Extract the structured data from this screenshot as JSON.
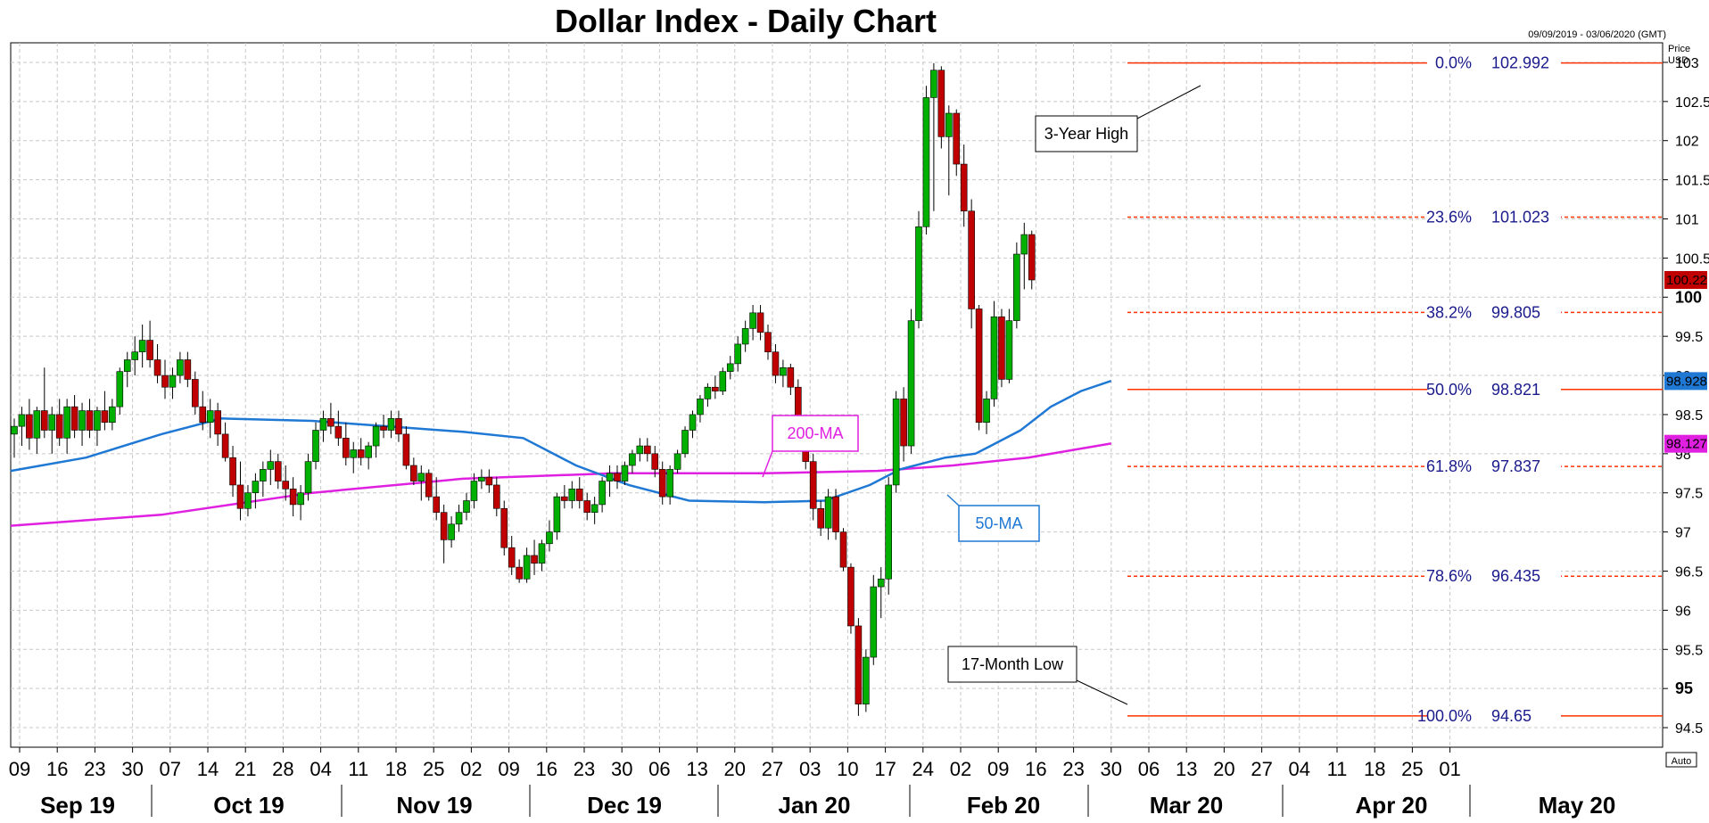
{
  "chart_data": {
    "type": "candlestick",
    "title": "Dollar Index - Daily Chart",
    "date_range": "09/09/2019 - 03/06/2020 (GMT)",
    "y_unit_label": [
      "Price",
      "USD"
    ],
    "ylim": [
      94.25,
      103.25
    ],
    "y_ticks": [
      "94.5",
      "95",
      "95.5",
      "96",
      "96.5",
      "97",
      "97.5",
      "98",
      "98.5",
      "99",
      "99.5",
      "100",
      "100.5",
      "101",
      "101.5",
      "102",
      "102.5",
      "103"
    ],
    "y_bold_ticks": [
      "95",
      "100"
    ],
    "x_day_ticks": [
      "09",
      "16",
      "23",
      "30",
      "07",
      "14",
      "21",
      "28",
      "04",
      "11",
      "18",
      "25",
      "02",
      "09",
      "16",
      "23",
      "30",
      "06",
      "13",
      "20",
      "27",
      "03",
      "10",
      "17",
      "24",
      "02",
      "09",
      "16",
      "23",
      "30",
      "06",
      "13",
      "20",
      "27",
      "04",
      "11",
      "18",
      "25",
      "01"
    ],
    "x_months": [
      "Sep 19",
      "Oct 19",
      "Nov 19",
      "Dec 19",
      "Jan 20",
      "Feb 20",
      "Mar 20",
      "Apr 20",
      "May 20"
    ],
    "auto_label": "Auto",
    "grid": true,
    "candles": [
      [
        98.25,
        98.45,
        97.95,
        98.35
      ],
      [
        98.35,
        98.6,
        98.1,
        98.5
      ],
      [
        98.5,
        98.7,
        98.05,
        98.2
      ],
      [
        98.2,
        98.6,
        98.0,
        98.55
      ],
      [
        98.55,
        99.1,
        98.2,
        98.3
      ],
      [
        98.3,
        98.6,
        98.0,
        98.5
      ],
      [
        98.5,
        98.7,
        98.1,
        98.2
      ],
      [
        98.2,
        98.7,
        98.0,
        98.6
      ],
      [
        98.6,
        98.75,
        98.2,
        98.3
      ],
      [
        98.3,
        98.65,
        98.1,
        98.55
      ],
      [
        98.55,
        98.7,
        98.2,
        98.3
      ],
      [
        98.3,
        98.6,
        98.1,
        98.55
      ],
      [
        98.55,
        98.8,
        98.3,
        98.4
      ],
      [
        98.4,
        98.7,
        98.3,
        98.6
      ],
      [
        98.6,
        99.1,
        98.5,
        99.05
      ],
      [
        99.05,
        99.3,
        98.85,
        99.2
      ],
      [
        99.2,
        99.5,
        99.0,
        99.3
      ],
      [
        99.3,
        99.65,
        99.1,
        99.45
      ],
      [
        99.45,
        99.7,
        99.1,
        99.2
      ],
      [
        99.2,
        99.4,
        98.9,
        99.0
      ],
      [
        99.0,
        99.2,
        98.7,
        98.85
      ],
      [
        98.85,
        99.1,
        98.7,
        99.0
      ],
      [
        99.0,
        99.3,
        98.9,
        99.2
      ],
      [
        99.2,
        99.3,
        98.85,
        98.95
      ],
      [
        98.95,
        99.05,
        98.5,
        98.6
      ],
      [
        98.6,
        98.8,
        98.3,
        98.4
      ],
      [
        98.4,
        98.7,
        98.2,
        98.55
      ],
      [
        98.55,
        98.65,
        98.1,
        98.25
      ],
      [
        98.25,
        98.4,
        97.9,
        97.95
      ],
      [
        97.95,
        98.1,
        97.45,
        97.6
      ],
      [
        97.6,
        97.9,
        97.15,
        97.3
      ],
      [
        97.3,
        97.6,
        97.2,
        97.5
      ],
      [
        97.5,
        97.75,
        97.3,
        97.65
      ],
      [
        97.65,
        97.9,
        97.45,
        97.8
      ],
      [
        97.8,
        98.05,
        97.6,
        97.9
      ],
      [
        97.9,
        98.0,
        97.55,
        97.65
      ],
      [
        97.65,
        97.85,
        97.4,
        97.55
      ],
      [
        97.55,
        97.7,
        97.2,
        97.35
      ],
      [
        97.35,
        97.6,
        97.15,
        97.5
      ],
      [
        97.5,
        98.0,
        97.4,
        97.9
      ],
      [
        97.9,
        98.4,
        97.8,
        98.3
      ],
      [
        98.3,
        98.55,
        98.15,
        98.45
      ],
      [
        98.45,
        98.65,
        98.25,
        98.35
      ],
      [
        98.35,
        98.55,
        98.1,
        98.2
      ],
      [
        98.2,
        98.4,
        97.85,
        97.95
      ],
      [
        97.95,
        98.15,
        97.75,
        98.05
      ],
      [
        98.05,
        98.2,
        97.85,
        97.95
      ],
      [
        97.95,
        98.15,
        97.8,
        98.1
      ],
      [
        98.1,
        98.4,
        97.95,
        98.35
      ],
      [
        98.35,
        98.5,
        98.2,
        98.3
      ],
      [
        98.3,
        98.55,
        98.2,
        98.45
      ],
      [
        98.45,
        98.55,
        98.15,
        98.25
      ],
      [
        98.25,
        98.35,
        97.8,
        97.85
      ],
      [
        97.85,
        97.95,
        97.6,
        97.65
      ],
      [
        97.65,
        97.85,
        97.4,
        97.75
      ],
      [
        97.75,
        97.8,
        97.4,
        97.45
      ],
      [
        97.45,
        97.7,
        97.15,
        97.25
      ],
      [
        97.25,
        97.35,
        96.6,
        96.9
      ],
      [
        96.9,
        97.2,
        96.8,
        97.1
      ],
      [
        97.1,
        97.35,
        97.0,
        97.25
      ],
      [
        97.25,
        97.5,
        97.15,
        97.4
      ],
      [
        97.4,
        97.75,
        97.3,
        97.65
      ],
      [
        97.65,
        97.8,
        97.55,
        97.7
      ],
      [
        97.7,
        97.8,
        97.5,
        97.6
      ],
      [
        97.6,
        97.7,
        97.2,
        97.3
      ],
      [
        97.3,
        97.4,
        96.7,
        96.8
      ],
      [
        96.8,
        96.95,
        96.45,
        96.55
      ],
      [
        96.55,
        96.65,
        96.35,
        96.4
      ],
      [
        96.4,
        96.8,
        96.35,
        96.7
      ],
      [
        96.7,
        96.9,
        96.45,
        96.6
      ],
      [
        96.6,
        96.9,
        96.5,
        96.85
      ],
      [
        96.85,
        97.15,
        96.75,
        97.0
      ],
      [
        97.0,
        97.5,
        96.9,
        97.45
      ],
      [
        97.45,
        97.6,
        97.3,
        97.4
      ],
      [
        97.4,
        97.65,
        97.3,
        97.55
      ],
      [
        97.55,
        97.7,
        97.3,
        97.4
      ],
      [
        97.4,
        97.5,
        97.15,
        97.25
      ],
      [
        97.25,
        97.45,
        97.1,
        97.35
      ],
      [
        97.35,
        97.7,
        97.25,
        97.65
      ],
      [
        97.65,
        97.85,
        97.45,
        97.75
      ],
      [
        97.75,
        97.85,
        97.55,
        97.65
      ],
      [
        97.65,
        97.9,
        97.6,
        97.85
      ],
      [
        97.85,
        98.05,
        97.75,
        98.0
      ],
      [
        98.0,
        98.2,
        97.9,
        98.1
      ],
      [
        98.1,
        98.2,
        97.9,
        98.0
      ],
      [
        98.0,
        98.1,
        97.7,
        97.8
      ],
      [
        97.8,
        97.9,
        97.35,
        97.45
      ],
      [
        97.45,
        97.85,
        97.35,
        97.8
      ],
      [
        97.8,
        98.05,
        97.75,
        98.0
      ],
      [
        98.0,
        98.35,
        97.95,
        98.3
      ],
      [
        98.3,
        98.55,
        98.2,
        98.5
      ],
      [
        98.5,
        98.75,
        98.4,
        98.7
      ],
      [
        98.7,
        98.9,
        98.6,
        98.85
      ],
      [
        98.85,
        99.0,
        98.7,
        98.8
      ],
      [
        98.8,
        99.1,
        98.75,
        99.05
      ],
      [
        99.05,
        99.25,
        98.95,
        99.15
      ],
      [
        99.15,
        99.5,
        99.05,
        99.4
      ],
      [
        99.4,
        99.7,
        99.3,
        99.6
      ],
      [
        99.6,
        99.9,
        99.45,
        99.8
      ],
      [
        99.8,
        99.9,
        99.45,
        99.55
      ],
      [
        99.55,
        99.65,
        99.2,
        99.3
      ],
      [
        99.3,
        99.4,
        98.9,
        99.0
      ],
      [
        99.0,
        99.2,
        98.85,
        99.1
      ],
      [
        99.1,
        99.15,
        98.75,
        98.85
      ],
      [
        98.85,
        98.95,
        98.2,
        98.3
      ],
      [
        98.3,
        98.4,
        97.8,
        97.9
      ],
      [
        97.9,
        98.0,
        97.15,
        97.3
      ],
      [
        97.3,
        97.4,
        96.95,
        97.05
      ],
      [
        97.05,
        97.55,
        96.9,
        97.45
      ],
      [
        97.45,
        97.55,
        96.9,
        97.0
      ],
      [
        97.0,
        97.05,
        96.5,
        96.55
      ],
      [
        96.55,
        96.6,
        95.7,
        95.8
      ],
      [
        95.8,
        95.9,
        94.65,
        94.8
      ],
      [
        94.8,
        95.5,
        94.7,
        95.4
      ],
      [
        95.4,
        96.45,
        95.3,
        96.3
      ],
      [
        96.3,
        96.55,
        95.9,
        96.4
      ],
      [
        96.4,
        97.7,
        96.2,
        97.6
      ],
      [
        97.6,
        98.8,
        97.5,
        98.7
      ],
      [
        98.7,
        98.85,
        97.9,
        98.1
      ],
      [
        98.1,
        99.85,
        98.0,
        99.7
      ],
      [
        99.7,
        101.1,
        99.6,
        100.9
      ],
      [
        100.9,
        102.7,
        100.8,
        102.55
      ],
      [
        102.55,
        102.99,
        101.1,
        102.9
      ],
      [
        102.9,
        102.95,
        101.9,
        102.05
      ],
      [
        102.05,
        102.45,
        101.3,
        102.35
      ],
      [
        102.35,
        102.4,
        101.55,
        101.7
      ],
      [
        101.7,
        101.95,
        100.9,
        101.1
      ],
      [
        101.1,
        101.25,
        99.6,
        99.85
      ],
      [
        99.85,
        99.9,
        98.3,
        98.4
      ],
      [
        98.4,
        98.8,
        98.25,
        98.7
      ],
      [
        98.7,
        99.95,
        98.6,
        99.75
      ],
      [
        99.75,
        99.85,
        98.85,
        98.95
      ],
      [
        98.95,
        99.85,
        98.9,
        99.7
      ],
      [
        99.7,
        100.7,
        99.6,
        100.55
      ],
      [
        100.55,
        100.95,
        100.1,
        100.8
      ],
      [
        100.8,
        100.85,
        100.1,
        100.22
      ]
    ],
    "fibonacci": [
      {
        "pct": "0.0%",
        "value": "102.992",
        "level": 102.992,
        "style": "solid"
      },
      {
        "pct": "23.6%",
        "value": "101.023",
        "level": 101.023,
        "style": "dashed"
      },
      {
        "pct": "38.2%",
        "value": "99.805",
        "level": 99.805,
        "style": "dashed"
      },
      {
        "pct": "50.0%",
        "value": "98.821",
        "level": 98.821,
        "style": "solid"
      },
      {
        "pct": "61.8%",
        "value": "97.837",
        "level": 97.837,
        "style": "dashed"
      },
      {
        "pct": "78.6%",
        "value": "96.435",
        "level": 96.435,
        "style": "dashed"
      },
      {
        "pct": "100.0%",
        "value": "94.65",
        "level": 94.65,
        "style": "solid"
      }
    ],
    "ma50": {
      "label": "50-MA",
      "color": "#1f78d4",
      "last": "98.928",
      "points": [
        [
          0,
          97.78
        ],
        [
          10,
          97.95
        ],
        [
          20,
          98.25
        ],
        [
          28,
          98.45
        ],
        [
          40,
          98.42
        ],
        [
          50,
          98.35
        ],
        [
          60,
          98.28
        ],
        [
          68,
          98.2
        ],
        [
          75,
          97.85
        ],
        [
          82,
          97.6
        ],
        [
          90,
          97.4
        ],
        [
          100,
          97.38
        ],
        [
          108,
          97.4
        ],
        [
          114,
          97.6
        ],
        [
          118,
          97.8
        ],
        [
          124,
          97.95
        ],
        [
          128,
          98.0
        ],
        [
          130,
          98.1
        ],
        [
          134,
          98.3
        ],
        [
          138,
          98.6
        ],
        [
          142,
          98.8
        ],
        [
          146,
          98.93
        ]
      ]
    },
    "ma200": {
      "label": "200-MA",
      "color": "#e020e0",
      "last": "98.127",
      "points": [
        [
          0,
          97.08
        ],
        [
          20,
          97.22
        ],
        [
          40,
          97.5
        ],
        [
          60,
          97.68
        ],
        [
          80,
          97.75
        ],
        [
          100,
          97.75
        ],
        [
          115,
          97.78
        ],
        [
          125,
          97.85
        ],
        [
          135,
          97.95
        ],
        [
          146,
          98.13
        ]
      ]
    },
    "current_price": "100.22",
    "annotations": {
      "high": "3-Year High",
      "low": "17-Month Low"
    },
    "colors": {
      "up": "#00b000",
      "down": "#c00000",
      "fib": "#ff3300",
      "grid": "#c8c8c8"
    }
  }
}
